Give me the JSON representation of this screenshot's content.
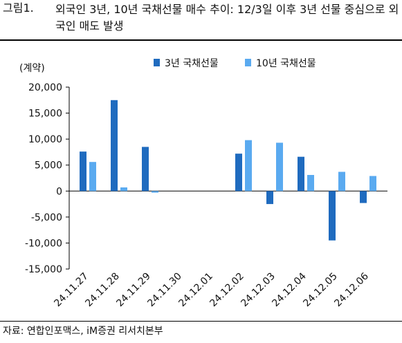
{
  "figure": {
    "label": "그림1.",
    "title": "외국인 3년, 10년 국채선물 매수 추이: 12/3일 이후 3년 선물 중심으로 외국인 매도 발생"
  },
  "source": "자료: 연합인포맥스, iM증권 리서치본부",
  "colors": {
    "series_3y": "#1f6bbf",
    "series_10y": "#5aaaf0",
    "axis": "#000000"
  },
  "chart_data": {
    "type": "bar",
    "unit_label": "(계약)",
    "categories": [
      "24.11.27",
      "24.11.28",
      "24.11.29",
      "24.11.30",
      "24.12.01",
      "24.12.02",
      "24.12.03",
      "24.12.04",
      "24.12.05",
      "24.12.06"
    ],
    "series": [
      {
        "name": "3년 국채선물",
        "values": [
          7600,
          17500,
          8500,
          0,
          0,
          7200,
          -2500,
          6600,
          -9500,
          -2300
        ]
      },
      {
        "name": "10년 국채선물",
        "values": [
          5600,
          700,
          -300,
          0,
          0,
          9800,
          9300,
          3100,
          3700,
          2900
        ]
      }
    ],
    "ylim": [
      -15000,
      20000
    ],
    "yticks": [
      20000,
      15000,
      10000,
      5000,
      0,
      -5000,
      -10000,
      -15000
    ],
    "ytick_labels": [
      "20,000",
      "15,000",
      "10,000",
      "5,000",
      "0",
      "-5,000",
      "-10,000",
      "-15,000"
    ],
    "legend_position": "top",
    "grid": false
  }
}
